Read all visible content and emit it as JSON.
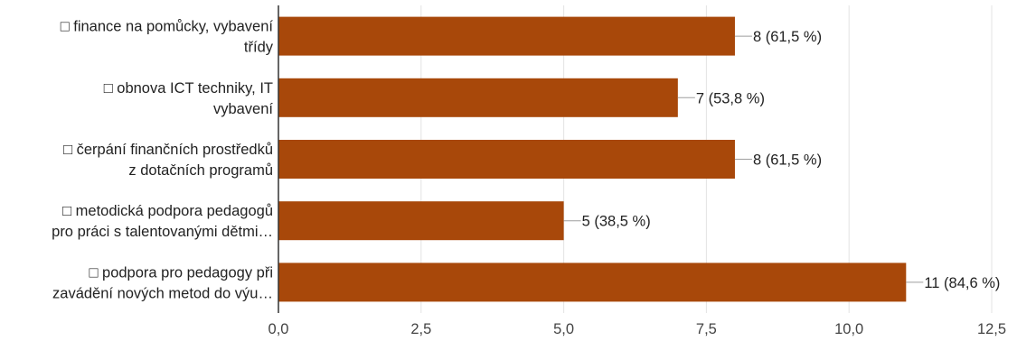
{
  "chart_data": {
    "type": "bar",
    "orientation": "horizontal",
    "categories": [
      [
        "□ finance na pomůcky, vybavení",
        "třídy"
      ],
      [
        "□ obnova ICT techniky, IT",
        "vybavení"
      ],
      [
        "□ čerpání finančních prostředků",
        "z dotačních programů"
      ],
      [
        "□ metodická podpora pedagogů",
        "pro práci s talentovanými dětmi…"
      ],
      [
        "□ podpora pro pedagogy při",
        "zavádění nových metod do výu…"
      ]
    ],
    "values": [
      8,
      7,
      8,
      5,
      11
    ],
    "value_labels": [
      "8 (61,5 %)",
      "7 (53,8 %)",
      "8 (61,5 %)",
      "5 (38,5 %)",
      "11 (84,6 %)"
    ],
    "xlim": [
      0,
      12.5
    ],
    "x_ticks": [
      0,
      2.5,
      5,
      7.5,
      10,
      12.5
    ],
    "x_tick_labels": [
      "0,0",
      "2,5",
      "5,0",
      "7,5",
      "10,0",
      "12,5"
    ],
    "grid": true,
    "bar_color": "#a8480a",
    "title": "",
    "xlabel": "",
    "ylabel": ""
  }
}
